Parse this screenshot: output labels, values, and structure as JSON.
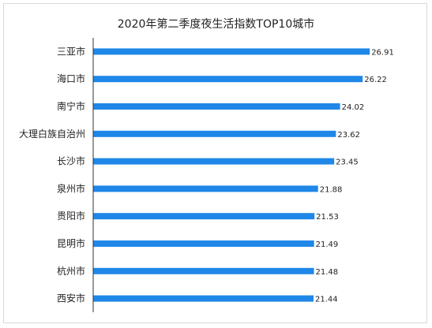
{
  "chart_data": {
    "type": "bar",
    "orientation": "horizontal",
    "title": "2020年第二季度夜生活指数TOP10城市",
    "categories": [
      "三亚市",
      "海口市",
      "南宁市",
      "大理白族自治州",
      "长沙市",
      "泉州市",
      "贵阳市",
      "昆明市",
      "杭州市",
      "西安市"
    ],
    "values": [
      26.91,
      26.22,
      24.02,
      23.62,
      23.45,
      21.88,
      21.53,
      21.49,
      21.48,
      21.44
    ],
    "value_labels": [
      "26.91",
      "26.22",
      "24.02",
      "23.62",
      "23.45",
      "21.88",
      "21.53",
      "21.49",
      "21.48",
      "21.44"
    ],
    "xlim": [
      0,
      29.2
    ],
    "bar_color": "#1f87e8",
    "grid": false,
    "legend": "none"
  }
}
